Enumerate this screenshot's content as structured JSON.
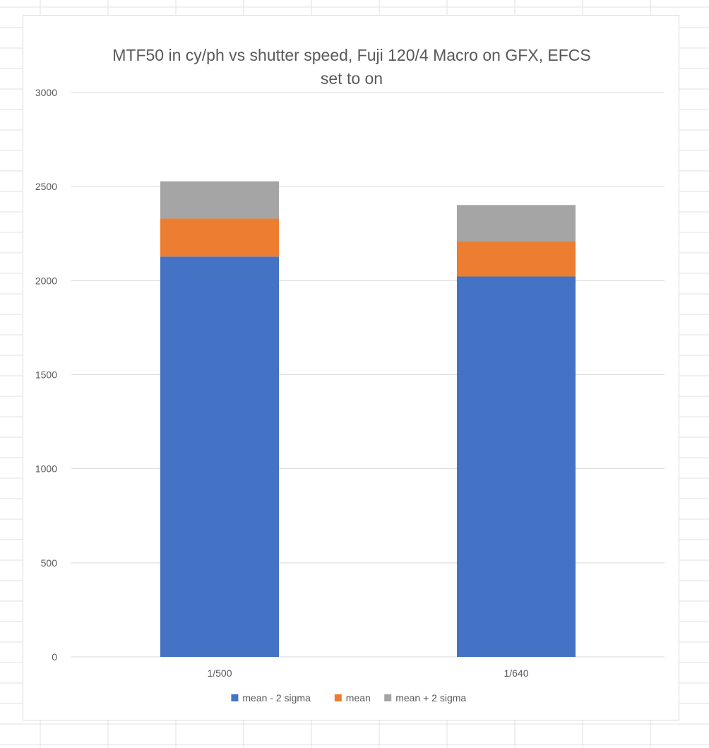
{
  "chart_data": {
    "type": "bar",
    "stacked": true,
    "title_lines": [
      "MTF50 in cy/ph vs shutter speed, Fuji 120/4 Macro on GFX, EFCS",
      "set to on"
    ],
    "categories": [
      "1/500",
      "1/640"
    ],
    "series": [
      {
        "name": "mean - 2 sigma",
        "color": "#4472C4",
        "values": [
          2128,
          2022
        ]
      },
      {
        "name": "mean",
        "color": "#ED7D31",
        "values": [
          202,
          188
        ]
      },
      {
        "name": "mean + 2 sigma",
        "color": "#A5A5A5",
        "values": [
          198,
          192
        ]
      }
    ],
    "yticks": [
      0,
      500,
      1000,
      1500,
      2000,
      2500,
      3000
    ],
    "ylim": [
      0,
      3000
    ],
    "grid": true,
    "legend_position": "bottom"
  }
}
